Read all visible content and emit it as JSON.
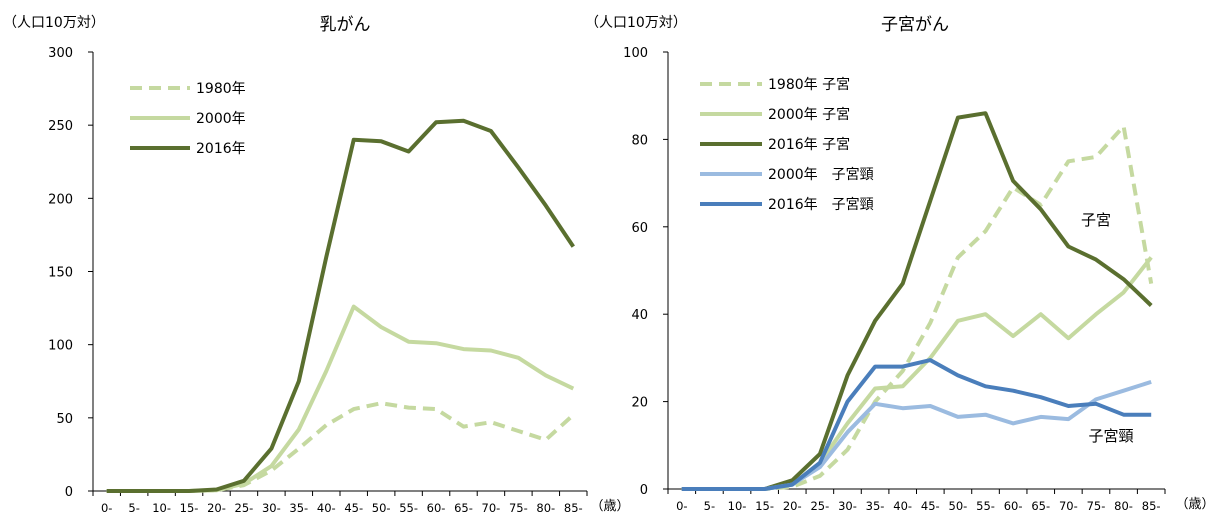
{
  "chart_data": [
    {
      "type": "line",
      "title": "乳がん",
      "unit_label": "（人口10万対）",
      "xlabel": "（歳）",
      "ylim": [
        0,
        300
      ],
      "y_ticks": [
        "0",
        "50",
        "100",
        "150",
        "200",
        "250",
        "300"
      ],
      "categories": [
        "0-",
        "5-",
        "10-",
        "15-",
        "20-",
        "25-",
        "30-",
        "35-",
        "40-",
        "45-",
        "50-",
        "55-",
        "60-",
        "65-",
        "70-",
        "75-",
        "80-",
        "85-"
      ],
      "legend_position": "top-left",
      "series": [
        {
          "name": "1980年",
          "color": "#c5d9a0",
          "dash": true,
          "values": [
            0,
            0,
            0,
            0,
            0.5,
            4,
            14,
            29,
            45,
            56,
            60,
            57,
            56,
            44,
            47,
            41,
            35,
            52
          ]
        },
        {
          "name": "2000年",
          "color": "#c5d9a0",
          "dash": false,
          "values": [
            0,
            0,
            0,
            0,
            0.5,
            5,
            17,
            42,
            82,
            126,
            112,
            102,
            101,
            97,
            96,
            91,
            79,
            70
          ]
        },
        {
          "name": "2016年",
          "color": "#5a6f2f",
          "dash": false,
          "values": [
            0,
            0,
            0,
            0,
            1,
            7,
            29,
            75,
            160,
            240,
            239,
            232,
            252,
            253,
            246,
            221,
            195,
            167
          ]
        }
      ],
      "annotations": []
    },
    {
      "type": "line",
      "title": "子宮がん",
      "unit_label": "（人口10万対）",
      "xlabel": "（歳）",
      "ylim": [
        0,
        100
      ],
      "y_ticks": [
        "0",
        "20",
        "40",
        "60",
        "80",
        "100"
      ],
      "categories": [
        "0-",
        "5-",
        "10-",
        "15-",
        "20-",
        "25-",
        "30-",
        "35-",
        "40-",
        "45-",
        "50-",
        "55-",
        "60-",
        "65-",
        "70-",
        "75-",
        "80-",
        "85-"
      ],
      "legend_position": "top-left",
      "series": [
        {
          "name": "1980年 子宮",
          "color": "#c5d9a0",
          "dash": true,
          "values": [
            0,
            0,
            0,
            0,
            0.5,
            3,
            9,
            20,
            27,
            38,
            53,
            59,
            69,
            65,
            75,
            76,
            83,
            47
          ]
        },
        {
          "name": "2000年 子宮",
          "color": "#c5d9a0",
          "dash": false,
          "values": [
            0,
            0,
            0,
            0,
            1,
            6,
            15,
            23,
            23.5,
            30,
            38.5,
            40,
            35,
            40,
            34.5,
            40,
            45,
            53
          ]
        },
        {
          "name": "2016年 子宮",
          "color": "#5a6f2f",
          "dash": false,
          "values": [
            0,
            0,
            0,
            0,
            2,
            8,
            26,
            38.5,
            47,
            66,
            85,
            86,
            70.5,
            64,
            55.5,
            52.5,
            48,
            42
          ]
        },
        {
          "name": "2000年　子宮頸",
          "color": "#9bbbe0",
          "dash": false,
          "values": [
            0,
            0,
            0,
            0,
            1,
            5,
            13,
            19.5,
            18.5,
            19,
            16.5,
            17,
            15,
            16.5,
            16,
            20.5,
            22.5,
            24.5
          ]
        },
        {
          "name": "2016年　子宮頸",
          "color": "#4a7ebb",
          "dash": false,
          "values": [
            0,
            0,
            0,
            0,
            1,
            6,
            20,
            28,
            28,
            29.5,
            26,
            23.5,
            22.5,
            21,
            19,
            19.5,
            17,
            17
          ]
        }
      ],
      "annotations": [
        "子宮",
        "子宮頸"
      ]
    }
  ]
}
